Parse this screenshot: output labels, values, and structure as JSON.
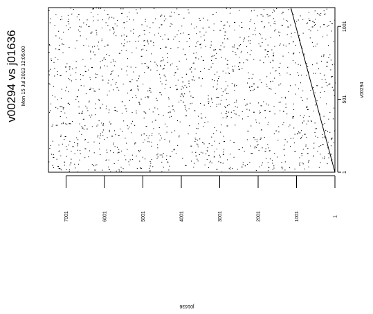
{
  "chart_data": {
    "type": "scatter",
    "orientation": "rotated-90-ccw",
    "title": "v00294 vs j01636",
    "subtitle": "Mon 15 Jul 2013 12:05:00",
    "xlabel": "j01636",
    "ylabel": "v00294",
    "x_ticks": [
      {
        "value": 1,
        "label": "1"
      },
      {
        "value": 1001,
        "label": "1001"
      },
      {
        "value": 2001,
        "label": "2001"
      },
      {
        "value": 3001,
        "label": "3001"
      },
      {
        "value": 4001,
        "label": "4001"
      },
      {
        "value": 5001,
        "label": "5001"
      },
      {
        "value": 6001,
        "label": "6001"
      },
      {
        "value": 7001,
        "label": "7001"
      }
    ],
    "y_ticks": [
      {
        "value": 1,
        "label": "1"
      },
      {
        "value": 501,
        "label": "501"
      },
      {
        "value": 1001,
        "label": "1001"
      }
    ],
    "xlim": [
      1,
      7460
    ],
    "ylim": [
      1,
      1130
    ],
    "series": [
      {
        "type": "line",
        "points": [
          [
            1,
            1
          ],
          [
            1150,
            1130
          ]
        ]
      },
      {
        "type": "scatter",
        "description": "sparse random background dots",
        "count": 1500
      }
    ],
    "grid": false,
    "legend": "none"
  }
}
